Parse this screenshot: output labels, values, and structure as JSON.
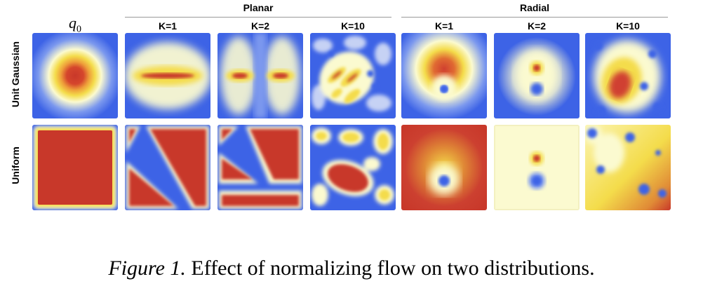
{
  "figure": {
    "q0_label": "q",
    "q0_sub": "0",
    "groups": {
      "planar": "Planar",
      "radial": "Radial"
    },
    "columns": {
      "planar_k1": "K=1",
      "planar_k2": "K=2",
      "planar_k10": "K=10",
      "radial_k1": "K=1",
      "radial_k2": "K=2",
      "radial_k10": "K=10"
    },
    "rows": {
      "gaussian": "Unit Gaussian",
      "uniform": "Uniform"
    },
    "colors": {
      "low": "#3d63e6",
      "mid": "#fbfad0",
      "high_yellow": "#f4dc4b",
      "high_orange": "#e59a3a",
      "high_red": "#c8382a"
    }
  },
  "caption": {
    "figure_label": "Figure 1.",
    "text": " Effect of normalizing flow on two distributions."
  }
}
